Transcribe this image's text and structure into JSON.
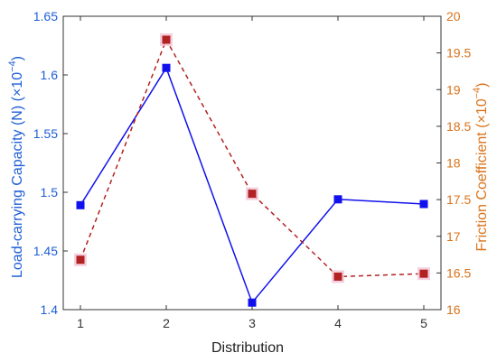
{
  "chart_data": {
    "type": "line",
    "xlabel": "Distribution",
    "x": [
      1,
      2,
      3,
      4,
      5
    ],
    "xlim": [
      0.8,
      5.2
    ],
    "xticks": [
      "1",
      "2",
      "3",
      "4",
      "5"
    ],
    "left_axis": {
      "label": "Load-carrying Capacity (N) (×10",
      "label_exp": "−4",
      "label_close": ")",
      "ylim": [
        1.4,
        1.65
      ],
      "ticks": [
        "1.4",
        "1.45",
        "1.5",
        "1.55",
        "1.6",
        "1.65"
      ],
      "color": "#1f5fd6"
    },
    "right_axis": {
      "label": "Friction Coefficient (×10",
      "label_exp": "−4",
      "label_close": ")",
      "ylim": [
        16,
        20
      ],
      "ticks": [
        "16",
        "16.5",
        "17",
        "17.5",
        "18",
        "18.5",
        "19",
        "19.5",
        "20"
      ],
      "color": "#d9731a"
    },
    "series": [
      {
        "axis": "left",
        "values": [
          1.489,
          1.606,
          1.406,
          1.494,
          1.49
        ],
        "color": "#1111ee",
        "style": "solid",
        "marker": "square"
      },
      {
        "axis": "right",
        "values": [
          16.68,
          19.68,
          17.58,
          16.45,
          16.49
        ],
        "color": "#b22222",
        "style": "dashed",
        "marker": "square"
      }
    ]
  }
}
